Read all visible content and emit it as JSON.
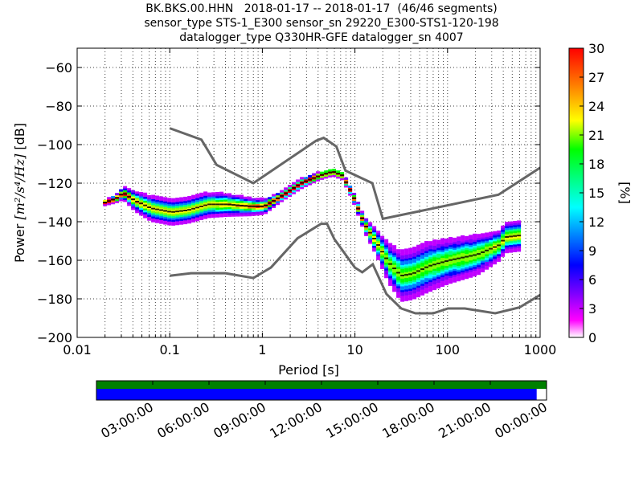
{
  "header": {
    "title_line1": "BK.BKS.00.HHN   2018-01-17 -- 2018-01-17  (46/46 segments)",
    "title_line2": "sensor_type STS-1_E300 sensor_sn 29220_E300-STS1-120-198",
    "title_line3": "datalogger_type Q330HR-GFE datalogger_sn 4007"
  },
  "chart_data": [
    {
      "type": "heatmap",
      "xlabel": "Period [s]",
      "ylabel_prefix": "Power ",
      "ylabel_unit": "[m²/s⁴/Hz]",
      "ylabel_suffix": " [dB]",
      "x_scale": "log",
      "xlim": [
        0.01,
        1000
      ],
      "ylim": [
        -200,
        -50
      ],
      "x_ticks": [
        0.01,
        0.1,
        1,
        10,
        100,
        1000
      ],
      "x_tick_labels": [
        "0.01",
        "0.1",
        "1",
        "10",
        "100",
        "1000"
      ],
      "y_ticks": [
        -200,
        -180,
        -160,
        -140,
        -120,
        -100,
        -80,
        -60
      ],
      "y_tick_labels": [
        "−200",
        "−180",
        "−160",
        "−140",
        "−120",
        "−100",
        "−80",
        "−60"
      ],
      "grid": "dotted vertical at minor log ticks, dotted horizontal at major y ticks",
      "noise_models": [
        {
          "name": "high noise model",
          "color": "#666666",
          "x": [
            0.1,
            0.22,
            0.32,
            0.8,
            3.8,
            4.6,
            6.3,
            7.9,
            15.4,
            20,
            354.8,
            1000
          ],
          "y": [
            -91.5,
            -97.4,
            -110.5,
            -120,
            -98,
            -96.5,
            -101,
            -113.5,
            -120,
            -138.5,
            -126,
            -112
          ]
        },
        {
          "name": "low noise model",
          "color": "#666666",
          "x": [
            0.1,
            0.17,
            0.4,
            0.8,
            1.24,
            2.4,
            4.3,
            5,
            6,
            10,
            12,
            15.6,
            21.9,
            31.6,
            45,
            70,
            101,
            154,
            328,
            600,
            1000
          ],
          "y": [
            -168,
            -166.7,
            -166.7,
            -169.2,
            -163.7,
            -148.6,
            -141.1,
            -141.1,
            -149,
            -163.8,
            -166.2,
            -162.1,
            -177.5,
            -185,
            -187.5,
            -187.5,
            -185,
            -185,
            -187.5,
            -184.4,
            -178
          ]
        }
      ],
      "psd_band": {
        "x": [
          0.019,
          0.025,
          0.03,
          0.04,
          0.06,
          0.1,
          0.15,
          0.25,
          0.4,
          0.7,
          1.0,
          1.5,
          2.5,
          4.0,
          5.5,
          7.0,
          9.0,
          12,
          16,
          22,
          30,
          40,
          60,
          100,
          200,
          350,
          400,
          600
        ],
        "center": [
          -130,
          -128,
          -125,
          -129,
          -133,
          -135,
          -134,
          -131,
          -131,
          -132,
          -132,
          -127,
          -120,
          -116,
          -114,
          -116,
          -126,
          -141,
          -150,
          -161,
          -168,
          -167,
          -163,
          -160,
          -157,
          -152,
          -148,
          -147
        ],
        "spread": [
          1,
          1.5,
          2.5,
          4,
          5,
          5,
          5,
          5,
          4.5,
          3.5,
          3,
          2,
          2,
          1.5,
          1.5,
          1.5,
          2,
          3,
          5,
          8,
          10,
          10,
          10,
          9,
          8,
          6,
          6,
          6
        ]
      }
    },
    {
      "type": "colorbar",
      "label": "[%]",
      "range": [
        0,
        30
      ],
      "tick_labels": [
        "0",
        "3",
        "6",
        "9",
        "12",
        "15",
        "18",
        "21",
        "24",
        "27",
        "30"
      ],
      "colors": [
        "#ffffff",
        "#ff00ff",
        "#8000ff",
        "#0000ff",
        "#0080ff",
        "#00ffff",
        "#00ff80",
        "#00ff00",
        "#80ff00",
        "#ffff00",
        "#ff8000",
        "#ff0000"
      ]
    },
    {
      "type": "timeline",
      "data_fraction": 0.978,
      "coverage_color": "#0000ff",
      "availability_color": "#008000",
      "time_labels": [
        "03:00:00",
        "06:00:00",
        "09:00:00",
        "12:00:00",
        "15:00:00",
        "18:00:00",
        "21:00:00",
        "00:00:00"
      ]
    }
  ]
}
